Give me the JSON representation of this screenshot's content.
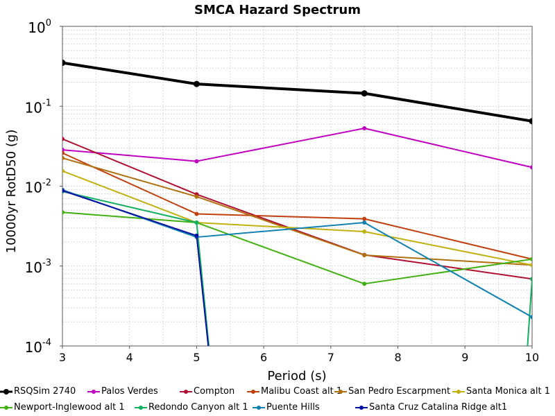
{
  "chart_data": {
    "type": "line",
    "title": "SMCA Hazard Spectrum",
    "xlabel": "Period (s)",
    "ylabel": "10000yr RotD50 (g)",
    "xlim": [
      3,
      10
    ],
    "ylim": [
      0.0001,
      1
    ],
    "yscale": "log",
    "grid": true,
    "legend_position": "bottom",
    "x_ticks": [
      "3",
      "4",
      "5",
      "6",
      "7",
      "8",
      "9",
      "10"
    ],
    "y_ticks": [
      {
        "base": "10",
        "exp": "0"
      },
      {
        "base": "10",
        "exp": "-1"
      },
      {
        "base": "10",
        "exp": "-2"
      },
      {
        "base": "10",
        "exp": "-3"
      },
      {
        "base": "10",
        "exp": "-4"
      }
    ],
    "series": [
      {
        "name": "RSQSim 2740",
        "color": "#000000",
        "bold": true,
        "x": [
          3,
          5,
          7.5,
          10
        ],
        "y": [
          0.35,
          0.19,
          0.145,
          0.065
        ]
      },
      {
        "name": "Palos Verdes",
        "color": "#c000c0",
        "x": [
          3,
          5,
          7.5,
          10
        ],
        "y": [
          0.0285,
          0.0205,
          0.053,
          0.0172
        ]
      },
      {
        "name": "Compton",
        "color": "#b01030",
        "x": [
          3,
          5,
          7.5,
          10
        ],
        "y": [
          0.039,
          0.0079,
          0.00138,
          0.00069
        ]
      },
      {
        "name": "Malibu Coast alt 1",
        "color": "#c04010",
        "x": [
          3,
          5,
          7.5,
          10
        ],
        "y": [
          0.026,
          0.0045,
          0.0039,
          0.00122
        ]
      },
      {
        "name": "San Pedro Escarpment",
        "color": "#b07010",
        "x": [
          3,
          5,
          7.5,
          10
        ],
        "y": [
          0.0225,
          0.0074,
          0.00137,
          0.00103
        ]
      },
      {
        "name": "Santa Monica alt 1",
        "color": "#c0b010",
        "x": [
          3,
          5,
          7.5,
          10
        ],
        "y": [
          0.0155,
          0.0035,
          0.0027,
          0.00103
        ]
      },
      {
        "name": "Newport-Inglewood alt 1",
        "color": "#40b010",
        "x": [
          3,
          5,
          7.5,
          10
        ],
        "y": [
          0.0047,
          0.0035,
          0.0006,
          0.00122
        ]
      },
      {
        "name": "Redondo Canyon alt 1",
        "color": "#10b060",
        "x": [
          3,
          5,
          5.3,
          9.85,
          10
        ],
        "y": [
          0.0086,
          0.0035,
          1e-05,
          1e-05,
          0.00069
        ]
      },
      {
        "name": "Puente Hills",
        "color": "#1080b0",
        "x": [
          3,
          5,
          7.5,
          10
        ],
        "y": [
          0.009,
          0.0023,
          0.0035,
          0.00023
        ]
      },
      {
        "name": "Santa Cruz Catalina Ridge alt1",
        "color": "#0010a0",
        "x": [
          3,
          5,
          5.3
        ],
        "y": [
          0.0088,
          0.0024,
          1e-05
        ]
      }
    ]
  }
}
